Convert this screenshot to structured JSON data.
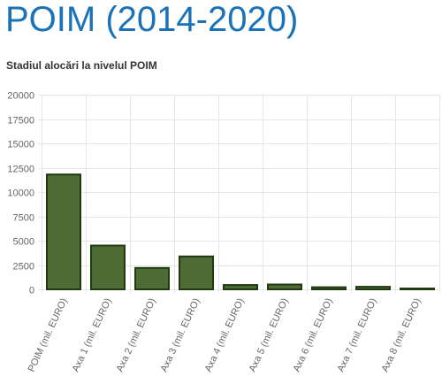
{
  "page": {
    "title": "POIM (2014-2020)"
  },
  "chart_data": {
    "type": "bar",
    "title": "Stadiul alocări la nivelul POIM",
    "xlabel": "",
    "ylabel": "",
    "categories": [
      "POIM (mil. EURO)",
      "Axa 1 (mil. EURO)",
      "Axa 2 (mil. EURO)",
      "Axa 3 (mil. EURO)",
      "Axa 4 (mil. EURO)",
      "Axa 5 (mil. EURO)",
      "Axa 6 (mil. EURO)",
      "Axa 7 (mil. EURO)",
      "Axa 8 (mil. EURO)"
    ],
    "values": [
      11800,
      4500,
      2200,
      3380,
      450,
      500,
      220,
      260,
      90
    ],
    "ylim": [
      0,
      20000
    ],
    "yticks": [
      "0",
      "2500",
      "5000",
      "7500",
      "10000",
      "12500",
      "15000",
      "17500",
      "20000"
    ],
    "grid": true,
    "colors": {
      "bar_fill": "#4f6b35",
      "bar_stroke": "#1f3a0f",
      "grid": "#e6e6e6",
      "title": "#1a73b8"
    }
  }
}
